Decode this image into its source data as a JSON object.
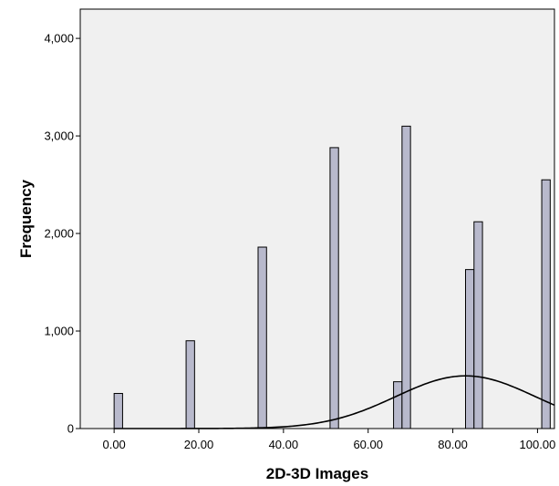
{
  "chart_data": {
    "type": "bar",
    "subtype": "histogram-with-normal-curve",
    "xlabel": "2D-3D Images",
    "ylabel": "Frequency",
    "xlim": [
      -8,
      104
    ],
    "ylim": [
      0,
      4300
    ],
    "x_ticks": [
      0,
      20,
      40,
      60,
      80,
      100
    ],
    "x_tick_labels": [
      "0.00",
      "20.00",
      "40.00",
      "60.00",
      "80.00",
      "100.00"
    ],
    "y_ticks": [
      0,
      1000,
      2000,
      3000,
      4000
    ],
    "y_tick_labels": [
      "0",
      "1,000",
      "2,000",
      "3,000",
      "4,000"
    ],
    "bin_width": 2,
    "bins": [
      {
        "x": 1,
        "count": 360
      },
      {
        "x": 18,
        "count": 900
      },
      {
        "x": 35,
        "count": 1860
      },
      {
        "x": 52,
        "count": 2880
      },
      {
        "x": 67,
        "count": 480
      },
      {
        "x": 69,
        "count": 3100
      },
      {
        "x": 84,
        "count": 1630
      },
      {
        "x": 86,
        "count": 2120
      },
      {
        "x": 102,
        "count": 2550
      }
    ],
    "normal_curve": {
      "mean": 83,
      "sd": 16.5,
      "peak": 540
    },
    "grid": false,
    "plot_background": "#f0f0f0",
    "bar_fill": "#b8b9cc",
    "bar_stroke": "#000000",
    "curve_color": "#000000"
  }
}
